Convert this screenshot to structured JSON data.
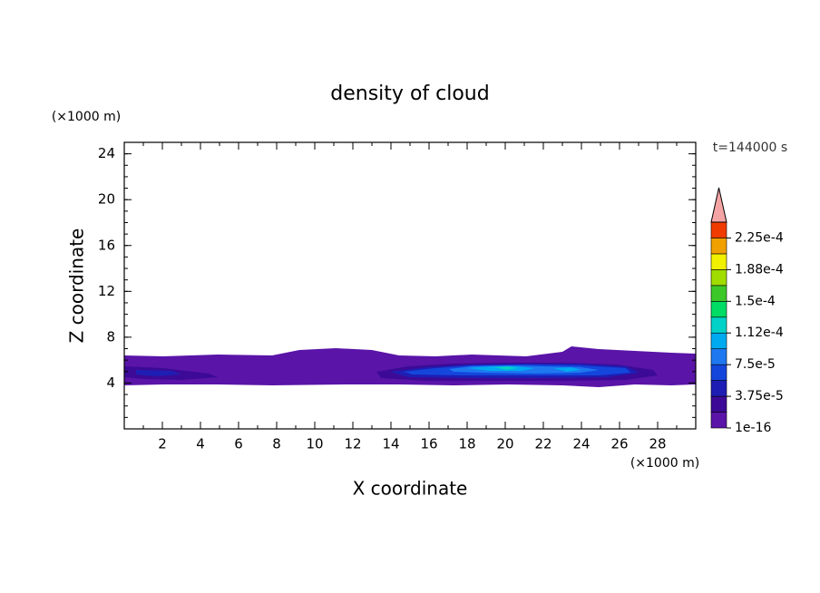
{
  "chart_data": {
    "type": "contour",
    "title": "density of cloud",
    "x_label": "X coordinate",
    "y_label": "Z coordinate",
    "x_unit": "(×1000 m)",
    "y_unit": "(×1000 m)",
    "time_label": "t=144000 s",
    "xlim": [
      0,
      30
    ],
    "ylim": [
      0,
      25
    ],
    "xticks": [
      2,
      4,
      6,
      8,
      10,
      12,
      14,
      16,
      18,
      20,
      22,
      24,
      26,
      28
    ],
    "yticks": [
      4,
      8,
      12,
      16,
      20,
      24
    ],
    "clim": [
      1e-16,
      0.00024375
    ],
    "levels": [
      1e-16,
      1.875e-05,
      3.75e-05,
      5.625e-05,
      7.5e-05,
      9.375e-05,
      0.0001125,
      0.00013125,
      0.00015,
      0.00016875,
      0.0001875,
      0.00020625,
      0.000225
    ],
    "colors": [
      "#5a14a8",
      "#3c0a96",
      "#1e1eb4",
      "#1446dc",
      "#1e78f0",
      "#00aaf0",
      "#00d2c8",
      "#00dc64",
      "#3cc828",
      "#a0dc00",
      "#f0f000",
      "#f0a000",
      "#f03c00"
    ],
    "extend_color": "#f4a4a4",
    "cticks": [
      1e-16,
      {
        "value": 3.75e-05,
        "label": "3.75e-5"
      },
      {
        "value": 7.5e-05,
        "label": "7.5e-5"
      },
      {
        "value": 0.0001125,
        "label": "1.12e-4"
      },
      {
        "value": 0.00015,
        "label": "1.5e-4"
      },
      {
        "value": 0.0001875,
        "label": "1.88e-4"
      },
      {
        "value": 0.000225,
        "label": "2.25e-4"
      }
    ]
  }
}
